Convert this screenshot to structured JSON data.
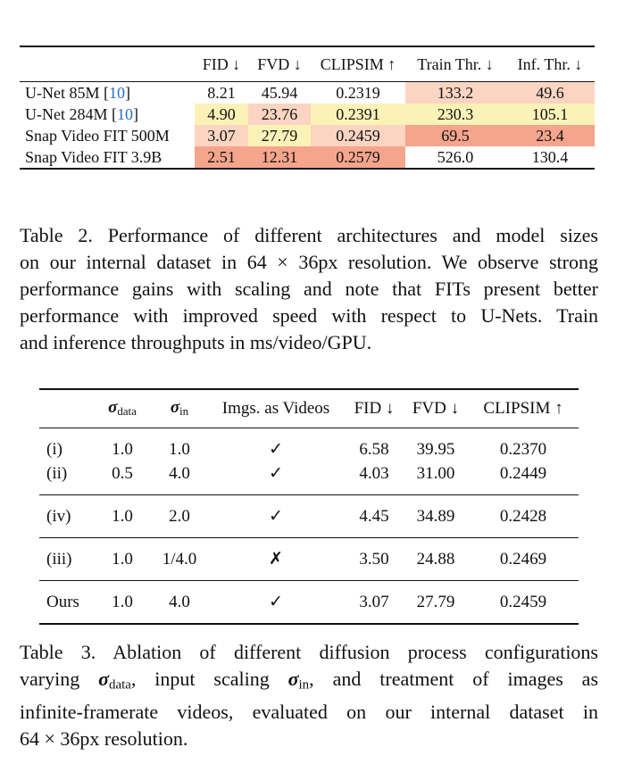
{
  "table2": {
    "header": {
      "model": "",
      "fid": "FID ↓",
      "fvd": "FVD ↓",
      "clipsim": "CLIPSIM ↑",
      "train": "Train Thr. ↓",
      "inf": "Inf. Thr. ↓"
    },
    "rows": [
      {
        "name": "U-Net 85M [",
        "ref": "10",
        "close": "]",
        "fid": "8.21",
        "fvd": "45.94",
        "clipsim": "0.2319",
        "train": "133.2",
        "inf": "49.6"
      },
      {
        "name": "U-Net 284M [",
        "ref": "10",
        "close": "]",
        "fid": "4.90",
        "fvd": "23.76",
        "clipsim": "0.2391",
        "train": "230.3",
        "inf": "105.1"
      },
      {
        "name": "Snap Video FIT 500M",
        "ref": "",
        "close": "",
        "fid": "3.07",
        "fvd": "27.79",
        "clipsim": "0.2459",
        "train": "69.5",
        "inf": "23.4"
      },
      {
        "name": "Snap Video FIT 3.9B",
        "ref": "",
        "close": "",
        "fid": "2.51",
        "fvd": "12.31",
        "clipsim": "0.2579",
        "train": "526.0",
        "inf": "130.4"
      }
    ],
    "cell_colors": {
      "best": "#f4a58c",
      "second": "#fbd5c2",
      "third": "#fbf2b8"
    }
  },
  "caption2": {
    "lines": [
      "Table 2.  Performance of different architectures and model sizes",
      "on our internal dataset in 64 × 36px resolution. We observe strong",
      "performance gains with scaling and note that FITs present better",
      "performance with improved speed with respect to U-Nets.  Train",
      "and inference throughputs in ms/video/GPU."
    ]
  },
  "table3": {
    "header": {
      "label": "",
      "sigma": "σ",
      "sub_data": "data",
      "sub_in": "in",
      "imgs": "Imgs. as Videos",
      "fid": "FID ↓",
      "fvd": "FVD ↓",
      "clipsim": "CLIPSIM ↑"
    },
    "rows": [
      {
        "label": "(i)",
        "sdata": "1.0",
        "sin": "1.0",
        "imgs": "✓",
        "fid": "6.58",
        "fvd": "39.95",
        "clipsim": "0.2370"
      },
      {
        "label": "(ii)",
        "sdata": "0.5",
        "sin": "4.0",
        "imgs": "✓",
        "fid": "4.03",
        "fvd": "31.00",
        "clipsim": "0.2449"
      },
      {
        "label": "(iv)",
        "sdata": "1.0",
        "sin": "2.0",
        "imgs": "✓",
        "fid": "4.45",
        "fvd": "34.89",
        "clipsim": "0.2428"
      },
      {
        "label": "(iii)",
        "sdata": "1.0",
        "sin": "1/4.0",
        "imgs": "✗",
        "fid": "3.50",
        "fvd": "24.88",
        "clipsim": "0.2469"
      },
      {
        "label": "Ours",
        "sdata": "1.0",
        "sin": "4.0",
        "imgs": "✓",
        "fid": "3.07",
        "fvd": "27.79",
        "clipsim": "0.2459"
      }
    ]
  },
  "caption3": {
    "l1": "Table 3.  Ablation of different diffusion process configurations",
    "l2_a": "varying",
    "sigma": "σ",
    "sub_data": "data",
    "l2_b": ", input scaling",
    "sub_in": "in",
    "l2_c": ", and treatment of images as",
    "l3": "infinite-framerate videos, evaluated on our internal dataset in",
    "l4": "64 × 36px resolution."
  }
}
